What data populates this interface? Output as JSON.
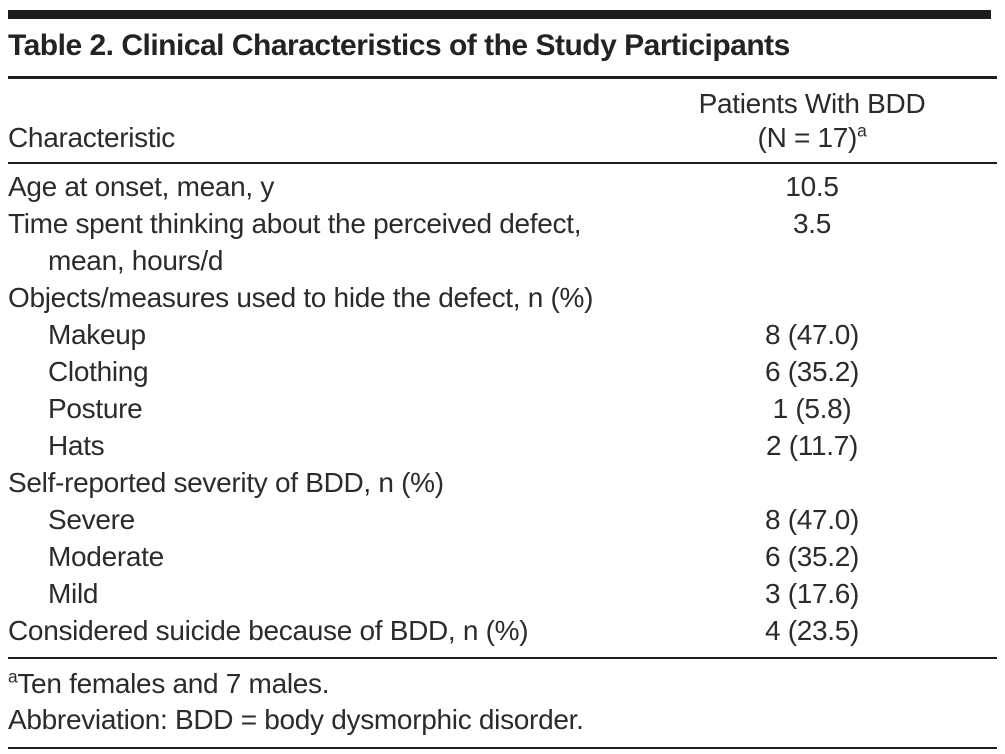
{
  "table": {
    "title": "Table 2. Clinical Characteristics of the Study Participants",
    "columns": {
      "characteristic": "Characteristic",
      "patients_line1": "Patients With BDD",
      "patients_line2": "(N = 17)",
      "patients_sup": "a"
    },
    "rows": [
      {
        "label": "Age at onset, mean, y",
        "value": "10.5",
        "indent": false
      },
      {
        "label": "Time spent thinking about the perceived defect, mean, hours/d",
        "value": "3.5",
        "indent": false
      },
      {
        "label": "Objects/measures used to hide the defect, n (%)",
        "value": "",
        "indent": false
      },
      {
        "label": "Makeup",
        "value": "8 (47.0)",
        "indent": true
      },
      {
        "label": "Clothing",
        "value": "6 (35.2)",
        "indent": true
      },
      {
        "label": "Posture",
        "value": "1 (5.8)",
        "indent": true
      },
      {
        "label": "Hats",
        "value": "2 (11.7)",
        "indent": true
      },
      {
        "label": "Self-reported severity of BDD, n (%)",
        "value": "",
        "indent": false
      },
      {
        "label": "Severe",
        "value": "8 (47.0)",
        "indent": true
      },
      {
        "label": "Moderate",
        "value": "6 (35.2)",
        "indent": true
      },
      {
        "label": "Mild",
        "value": "3 (17.6)",
        "indent": true
      },
      {
        "label": "Considered suicide because of BDD, n (%)",
        "value": "4 (23.5)",
        "indent": false
      }
    ],
    "footnotes": [
      {
        "sup": "a",
        "text": "Ten females and 7 males."
      },
      {
        "sup": "",
        "text": "Abbreviation: BDD = body dysmorphic disorder."
      }
    ]
  }
}
